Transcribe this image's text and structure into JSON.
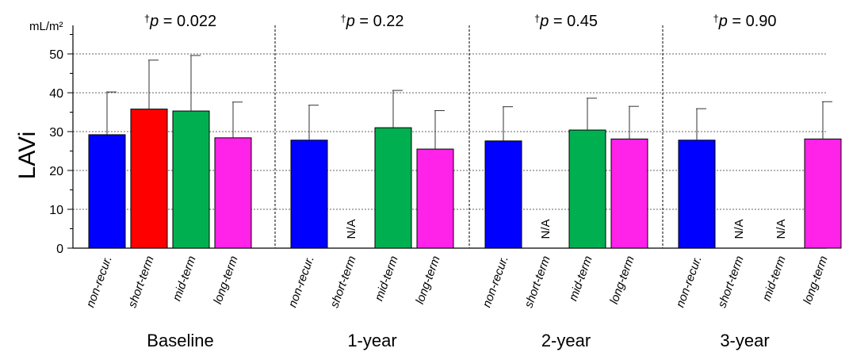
{
  "chart_data": {
    "type": "bar",
    "ylabel": "LAVi",
    "yunit": "mL/m²",
    "ylim": [
      0,
      55
    ],
    "yticks": [
      "0",
      "10",
      "20",
      "30",
      "40",
      "50"
    ],
    "grid": "dotted horizontal at 10, 20, 30, 40, 50",
    "na_label": "N/A",
    "series_colors": {
      "non-recur.": "#0000ff",
      "short-term": "#ff0000",
      "mid-term": "#00b050",
      "long-term": "#ff22e8"
    },
    "groups": [
      {
        "name": "Baseline",
        "p_label": "p = 0.022",
        "p_mark": "†",
        "bars": [
          {
            "category": "non-recur.",
            "value": 29.2,
            "error": 11.0
          },
          {
            "category": "short-term",
            "value": 35.8,
            "error": 12.6
          },
          {
            "category": "mid-term",
            "value": 35.3,
            "error": 14.3
          },
          {
            "category": "long-term",
            "value": 28.4,
            "error": 9.2
          }
        ]
      },
      {
        "name": "1-year",
        "p_label": "p = 0.22",
        "p_mark": "†",
        "bars": [
          {
            "category": "non-recur.",
            "value": 27.8,
            "error": 9.0
          },
          {
            "category": "short-term",
            "value": null,
            "error": null
          },
          {
            "category": "mid-term",
            "value": 31.0,
            "error": 9.6
          },
          {
            "category": "long-term",
            "value": 25.5,
            "error": 9.9
          }
        ]
      },
      {
        "name": "2-year",
        "p_label": "p = 0.45",
        "p_mark": "†",
        "bars": [
          {
            "category": "non-recur.",
            "value": 27.6,
            "error": 8.8
          },
          {
            "category": "short-term",
            "value": null,
            "error": null
          },
          {
            "category": "mid-term",
            "value": 30.4,
            "error": 8.2
          },
          {
            "category": "long-term",
            "value": 28.1,
            "error": 8.4
          }
        ]
      },
      {
        "name": "3-year",
        "p_label": "p = 0.90",
        "p_mark": "†",
        "bars": [
          {
            "category": "non-recur.",
            "value": 27.8,
            "error": 8.1
          },
          {
            "category": "short-term",
            "value": null,
            "error": null
          },
          {
            "category": "mid-term",
            "value": null,
            "error": null
          },
          {
            "category": "long-term",
            "value": 28.1,
            "error": 9.6
          }
        ]
      }
    ]
  }
}
